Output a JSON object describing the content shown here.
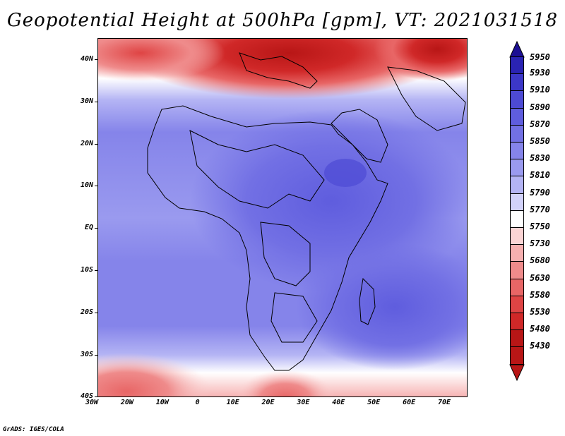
{
  "title": "Geopotential Height at 500hPa [gpm], VT: 2021031518",
  "footer": "GrADS: IGES/COLA",
  "y_axis_labels": [
    "40N",
    "30N",
    "20N",
    "10N",
    "EQ",
    "10S",
    "20S",
    "30S",
    "40S"
  ],
  "x_axis_labels": [
    "30W",
    "20W",
    "10W",
    "0",
    "10E",
    "20E",
    "30E",
    "40E",
    "50E",
    "60E",
    "70E"
  ],
  "colorbar": {
    "levels": [
      "5950",
      "5930",
      "5910",
      "5890",
      "5870",
      "5850",
      "5830",
      "5810",
      "5790",
      "5770",
      "5750",
      "5730",
      "5680",
      "5630",
      "5580",
      "5530",
      "5480",
      "5430"
    ],
    "colors": [
      "#1c0f93",
      "#2a23b3",
      "#3c37c8",
      "#4d4ad4",
      "#5f5dde",
      "#7270e4",
      "#8584ea",
      "#9a9aef",
      "#b4b4f4",
      "#d2d2fa",
      "#ffffff",
      "#fbd4d4",
      "#f6b0b0",
      "#ef8b8b",
      "#e86666",
      "#df4444",
      "#d02828",
      "#b81616"
    ]
  }
}
